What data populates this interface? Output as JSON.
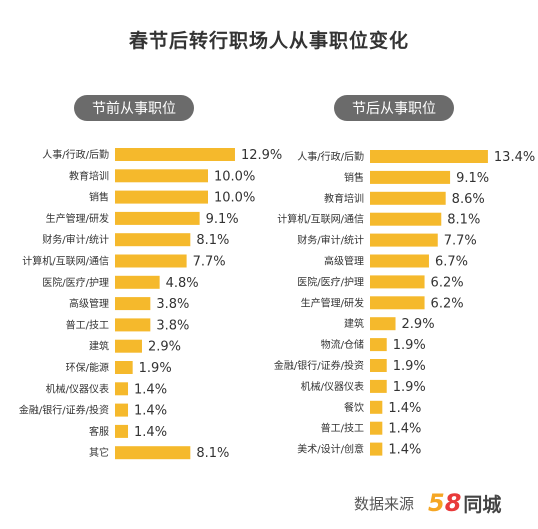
{
  "page_title": "春节后转行职场人从事职位变化",
  "footer": {
    "source_label": "数据来源",
    "logo_digit_5": "5",
    "logo_digit_8": "8",
    "logo_text": "同城"
  },
  "colors": {
    "bar": "#f5b92c",
    "panel_header": "#6b6b6b",
    "logo_orange": "#f5a623",
    "logo_red": "#e83a3a"
  },
  "chart_data": [
    {
      "type": "bar",
      "orientation": "horizontal",
      "title": "节前从事职位",
      "categories": [
        "人事/行政/后勤",
        "教育培训",
        "销售",
        "生产管理/研发",
        "财务/审计/统计",
        "计算机/互联网/通信",
        "医院/医疗/护理",
        "高级管理",
        "普工/技工",
        "建筑",
        "环保/能源",
        "机械/仪器仪表",
        "金融/银行/证券/投资",
        "客服",
        "其它"
      ],
      "values": [
        12.9,
        10.0,
        10.0,
        9.1,
        8.1,
        7.7,
        4.8,
        3.8,
        3.8,
        2.9,
        1.9,
        1.4,
        1.4,
        1.4,
        8.1
      ],
      "value_labels": [
        "12.9%",
        "10.0%",
        "10.0%",
        "9.1%",
        "8.1%",
        "7.7%",
        "4.8%",
        "3.8%",
        "3.8%",
        "2.9%",
        "1.9%",
        "1.4%",
        "1.4%",
        "1.4%",
        "8.1%"
      ],
      "unit": "%"
    },
    {
      "type": "bar",
      "orientation": "horizontal",
      "title": "节后从事职位",
      "categories": [
        "人事/行政/后勤",
        "销售",
        "教育培训",
        "计算机/互联网/通信",
        "财务/审计/统计",
        "高级管理",
        "医院/医疗/护理",
        "生产管理/研发",
        "建筑",
        "物流/仓储",
        "金融/银行/证券/投资",
        "机械/仪器仪表",
        "餐饮",
        "普工/技工",
        "美术/设计/创意"
      ],
      "values": [
        13.4,
        9.1,
        8.6,
        8.1,
        7.7,
        6.7,
        6.2,
        6.2,
        2.9,
        1.9,
        1.9,
        1.9,
        1.4,
        1.4,
        1.4
      ],
      "value_labels": [
        "13.4%",
        "9.1%",
        "8.6%",
        "8.1%",
        "7.7%",
        "6.7%",
        "6.2%",
        "6.2%",
        "2.9%",
        "1.9%",
        "1.9%",
        "1.9%",
        "1.4%",
        "1.4%",
        "1.4%"
      ],
      "unit": "%"
    }
  ]
}
